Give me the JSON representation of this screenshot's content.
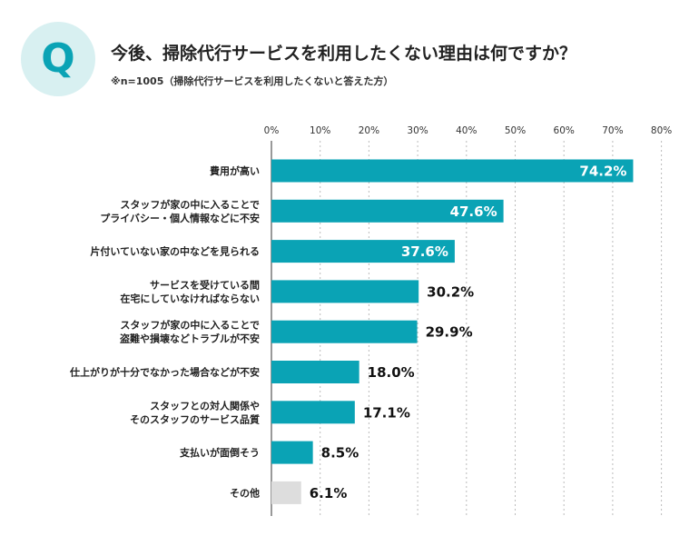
{
  "header": {
    "badge": "Q",
    "title": "今後、掃除代行サービスを利用したくない理由は何ですか？",
    "subtitle": "※n=1005（掃除代行サービスを利用したくないと答えた方）"
  },
  "colors": {
    "bar": "#0aa3b5",
    "bar_other": "#dddddd",
    "badge_bg": "#d8f0f1",
    "badge_text": "#0aa3b5",
    "grid": "#bbbbbb",
    "axis": "#555555"
  },
  "chart_data": {
    "type": "bar",
    "orientation": "horizontal",
    "title": "今後、掃除代行サービスを利用したくない理由は何ですか？",
    "xlim": [
      0,
      80
    ],
    "ticks": [
      0,
      10,
      20,
      30,
      40,
      50,
      60,
      70,
      80
    ],
    "tick_suffix": "%",
    "grid": true,
    "categories": [
      [
        "費用が高い"
      ],
      [
        "スタッフが家の中に入ることで",
        "プライバシー・個人情報などに不安"
      ],
      [
        "片付いていない家の中などを見られる"
      ],
      [
        "サービスを受けている間",
        "在宅にしていなければならない"
      ],
      [
        "スタッフが家の中に入ることで",
        "盗難や損壊などトラブルが不安"
      ],
      [
        "仕上がりが十分でなかった場合などが不安"
      ],
      [
        "スタッフとの対人関係や",
        "そのスタッフのサービス品質"
      ],
      [
        "支払いが面倒そう"
      ],
      [
        "その他"
      ]
    ],
    "values": [
      74.2,
      47.6,
      37.6,
      30.2,
      29.9,
      18.0,
      17.1,
      8.5,
      6.1
    ],
    "value_labels": [
      "74.2%",
      "47.6%",
      "37.6%",
      "30.2%",
      "29.9%",
      "18.0%",
      "17.1%",
      "8.5%",
      "6.1%"
    ],
    "label_inside": [
      true,
      true,
      true,
      false,
      false,
      false,
      false,
      false,
      false
    ],
    "highlight_other": [
      false,
      false,
      false,
      false,
      false,
      false,
      false,
      false,
      true
    ]
  }
}
